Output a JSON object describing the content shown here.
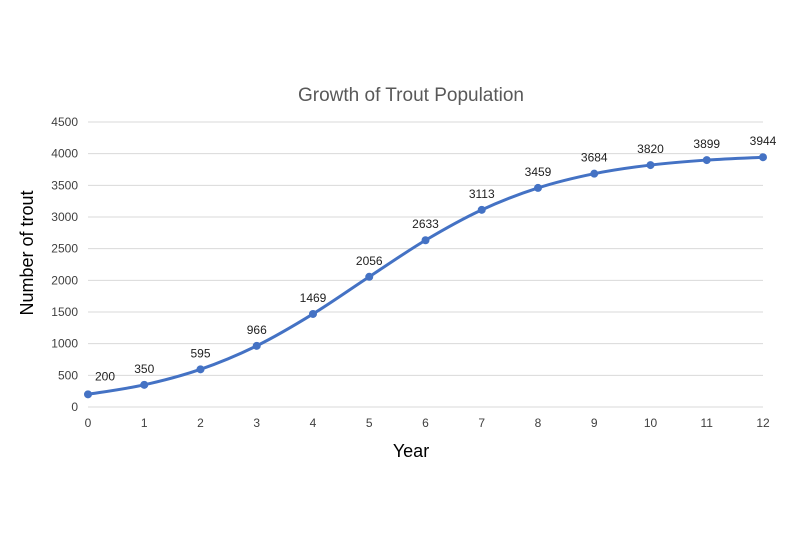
{
  "chart_data": {
    "type": "line",
    "title": "Growth of Trout Population",
    "xlabel": "Year",
    "ylabel": "Number of trout",
    "x": [
      0,
      1,
      2,
      3,
      4,
      5,
      6,
      7,
      8,
      9,
      10,
      11,
      12
    ],
    "series": [
      {
        "values": [
          200,
          350,
          595,
          966,
          1469,
          2056,
          2633,
          3113,
          3459,
          3684,
          3820,
          3899,
          3944
        ],
        "color": "#4472c4"
      }
    ],
    "xlim": [
      0,
      12
    ],
    "ylim": [
      0,
      4500
    ],
    "yticks": [
      0,
      500,
      1000,
      1500,
      2000,
      2500,
      3000,
      3500,
      4000,
      4500
    ],
    "grid": true,
    "smooth": true,
    "data_labels": true
  }
}
